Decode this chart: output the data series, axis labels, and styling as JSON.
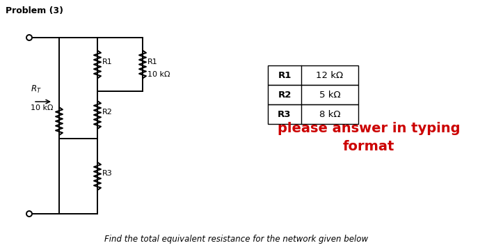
{
  "title": "Problem (3)",
  "circuit_label_RT": "$R_T$",
  "circuit_label_10k_left": "10 kΩ",
  "circuit_label_10k_right": "10 kΩ",
  "circuit_label_R1a": "R1",
  "circuit_label_R1b": "R1",
  "circuit_label_R2": "R2",
  "circuit_label_R3": "R3",
  "table_rows": [
    [
      "R1",
      "12 kΩ"
    ],
    [
      "R2",
      "5 kΩ"
    ],
    [
      "R3",
      "8 kΩ"
    ]
  ],
  "red_text_line1": "please answer in typing",
  "red_text_line2": "format",
  "footer_text": "Find the total equivalent resistance for the network given below",
  "bg_color": "#ffffff",
  "text_color": "#000000",
  "red_color": "#cc0000"
}
